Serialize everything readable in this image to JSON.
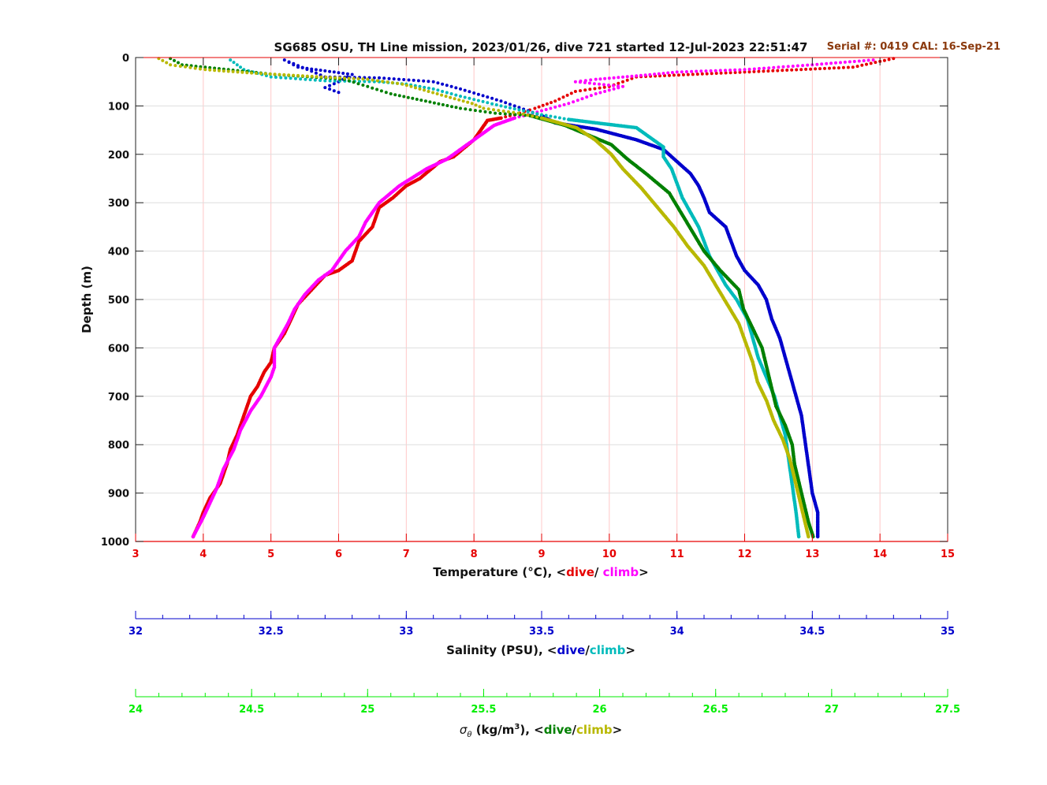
{
  "chart_data": {
    "type": "scatter",
    "title": "SG685 OSU, TH Line mission, 2023/01/26, dive 721 started 12-Jul-2023 22:51:47",
    "annotation": "Serial #: 0419  CAL: 16-Sep-21",
    "ylabel": "Depth (m)",
    "ylim": [
      0,
      1000
    ],
    "y_ticks": [
      "0",
      "100",
      "200",
      "300",
      "400",
      "500",
      "600",
      "700",
      "800",
      "900",
      "1000"
    ],
    "y_reversed": true,
    "grid": true,
    "axes": [
      {
        "name": "temperature",
        "label_prefix": "Temperature (°C), <",
        "label_dive": "dive",
        "label_sep": "/ ",
        "label_climb": "climb",
        "label_suffix": ">",
        "range": [
          3,
          15
        ],
        "ticks": [
          "3",
          "4",
          "5",
          "6",
          "7",
          "8",
          "9",
          "10",
          "11",
          "12",
          "13",
          "14",
          "15"
        ],
        "color": "#e60000"
      },
      {
        "name": "salinity",
        "label_prefix": "Salinity (PSU), <",
        "label_dive": "dive",
        "label_sep": "/",
        "label_climb": "climb",
        "label_suffix": ">",
        "range": [
          32,
          35
        ],
        "ticks": [
          "32",
          "32.5",
          "33",
          "33.5",
          "34",
          "34.5",
          "35"
        ],
        "color": "#0000cc"
      },
      {
        "name": "sigma_theta",
        "label_prefix": "σ",
        "label_sub": "θ",
        "label_mid": " (kg/m",
        "label_sup": "3",
        "label_mid2": "), <",
        "label_dive": "dive",
        "label_sep": "/",
        "label_climb": "climb",
        "label_suffix": ">",
        "range": [
          24,
          27.5
        ],
        "ticks": [
          "24",
          "24.5",
          "25",
          "25.5",
          "26",
          "26.5",
          "27",
          "27.5"
        ],
        "color": "#00ee00"
      }
    ],
    "series": [
      {
        "name": "dive",
        "axis": "temperature",
        "color": "#e60000",
        "points": [
          [
            14.2,
            2
          ],
          [
            13.6,
            20
          ],
          [
            12.0,
            30
          ],
          [
            10.4,
            40
          ],
          [
            10.0,
            60
          ],
          [
            9.5,
            70
          ],
          [
            9.2,
            90
          ],
          [
            8.9,
            105
          ],
          [
            8.6,
            118
          ],
          [
            8.4,
            125
          ],
          [
            8.2,
            130
          ],
          [
            8.0,
            170
          ],
          [
            7.7,
            205
          ],
          [
            7.5,
            215
          ],
          [
            7.2,
            250
          ],
          [
            7.0,
            265
          ],
          [
            6.8,
            290
          ],
          [
            6.6,
            310
          ],
          [
            6.5,
            350
          ],
          [
            6.3,
            380
          ],
          [
            6.2,
            420
          ],
          [
            6.0,
            440
          ],
          [
            5.8,
            450
          ],
          [
            5.6,
            480
          ],
          [
            5.4,
            510
          ],
          [
            5.3,
            540
          ],
          [
            5.2,
            570
          ],
          [
            5.05,
            600
          ],
          [
            5.0,
            630
          ],
          [
            4.9,
            650
          ],
          [
            4.8,
            680
          ],
          [
            4.7,
            700
          ],
          [
            4.6,
            740
          ],
          [
            4.5,
            780
          ],
          [
            4.4,
            810
          ],
          [
            4.35,
            840
          ],
          [
            4.25,
            880
          ],
          [
            4.1,
            910
          ],
          [
            4.0,
            940
          ],
          [
            3.95,
            960
          ],
          [
            3.85,
            990
          ]
        ]
      },
      {
        "name": "climb",
        "axis": "temperature",
        "color": "#ff00ff",
        "points": [
          [
            13.9,
            5
          ],
          [
            13.0,
            15
          ],
          [
            12.0,
            25
          ],
          [
            11.0,
            30
          ],
          [
            10.4,
            38
          ],
          [
            9.8,
            45
          ],
          [
            9.5,
            50
          ],
          [
            10.2,
            60
          ],
          [
            9.8,
            75
          ],
          [
            9.4,
            95
          ],
          [
            9.0,
            110
          ],
          [
            8.8,
            118
          ],
          [
            8.6,
            125
          ],
          [
            8.3,
            140
          ],
          [
            8.0,
            170
          ],
          [
            7.6,
            210
          ],
          [
            7.3,
            230
          ],
          [
            6.9,
            265
          ],
          [
            6.6,
            300
          ],
          [
            6.4,
            340
          ],
          [
            6.3,
            370
          ],
          [
            6.1,
            400
          ],
          [
            6.0,
            420
          ],
          [
            5.9,
            440
          ],
          [
            5.7,
            460
          ],
          [
            5.5,
            490
          ],
          [
            5.35,
            520
          ],
          [
            5.25,
            550
          ],
          [
            5.15,
            575
          ],
          [
            5.05,
            600
          ],
          [
            5.05,
            640
          ],
          [
            5.0,
            660
          ],
          [
            4.85,
            700
          ],
          [
            4.7,
            730
          ],
          [
            4.55,
            770
          ],
          [
            4.45,
            810
          ],
          [
            4.3,
            850
          ],
          [
            4.2,
            890
          ],
          [
            4.1,
            920
          ],
          [
            4.0,
            950
          ],
          [
            3.85,
            990
          ]
        ]
      },
      {
        "name": "dive",
        "axis": "salinity",
        "color": "#0000cc",
        "points": [
          [
            32.75,
            72
          ],
          [
            32.7,
            62
          ],
          [
            32.75,
            50
          ],
          [
            32.8,
            35
          ],
          [
            32.6,
            20
          ],
          [
            32.55,
            5
          ],
          [
            32.7,
            40
          ],
          [
            32.9,
            42
          ],
          [
            33.1,
            50
          ],
          [
            33.2,
            65
          ],
          [
            33.35,
            90
          ],
          [
            33.5,
            120
          ],
          [
            33.55,
            135
          ],
          [
            33.7,
            148
          ],
          [
            33.85,
            170
          ],
          [
            33.95,
            190
          ],
          [
            34.0,
            215
          ],
          [
            34.05,
            240
          ],
          [
            34.08,
            265
          ],
          [
            34.1,
            290
          ],
          [
            34.12,
            320
          ],
          [
            34.18,
            350
          ],
          [
            34.2,
            380
          ],
          [
            34.22,
            410
          ],
          [
            34.25,
            440
          ],
          [
            34.3,
            470
          ],
          [
            34.33,
            500
          ],
          [
            34.35,
            540
          ],
          [
            34.38,
            580
          ],
          [
            34.4,
            620
          ],
          [
            34.42,
            660
          ],
          [
            34.44,
            700
          ],
          [
            34.46,
            740
          ],
          [
            34.47,
            780
          ],
          [
            34.48,
            820
          ],
          [
            34.49,
            860
          ],
          [
            34.5,
            900
          ],
          [
            34.52,
            940
          ],
          [
            34.52,
            990
          ]
        ]
      },
      {
        "name": "climb",
        "axis": "salinity",
        "color": "#00bbbb",
        "points": [
          [
            32.35,
            5
          ],
          [
            32.4,
            25
          ],
          [
            32.5,
            40
          ],
          [
            32.7,
            48
          ],
          [
            32.9,
            50
          ],
          [
            33.0,
            55
          ],
          [
            33.1,
            65
          ],
          [
            33.2,
            80
          ],
          [
            33.35,
            100
          ],
          [
            33.5,
            118
          ],
          [
            33.6,
            128
          ],
          [
            33.7,
            135
          ],
          [
            33.85,
            145
          ],
          [
            33.9,
            165
          ],
          [
            33.95,
            185
          ],
          [
            33.95,
            205
          ],
          [
            33.98,
            230
          ],
          [
            34.0,
            260
          ],
          [
            34.02,
            290
          ],
          [
            34.05,
            320
          ],
          [
            34.08,
            350
          ],
          [
            34.1,
            380
          ],
          [
            34.12,
            410
          ],
          [
            34.15,
            440
          ],
          [
            34.18,
            470
          ],
          [
            34.22,
            500
          ],
          [
            34.26,
            540
          ],
          [
            34.28,
            580
          ],
          [
            34.3,
            620
          ],
          [
            34.33,
            660
          ],
          [
            34.36,
            700
          ],
          [
            34.38,
            740
          ],
          [
            34.4,
            780
          ],
          [
            34.41,
            820
          ],
          [
            34.42,
            860
          ],
          [
            34.43,
            900
          ],
          [
            34.44,
            940
          ],
          [
            34.45,
            990
          ]
        ]
      },
      {
        "name": "dive",
        "axis": "sigma_theta",
        "color": "#008000",
        "points": [
          [
            24.15,
            2
          ],
          [
            24.2,
            15
          ],
          [
            24.4,
            25
          ],
          [
            24.6,
            35
          ],
          [
            24.9,
            45
          ],
          [
            25.0,
            60
          ],
          [
            25.1,
            75
          ],
          [
            25.25,
            90
          ],
          [
            25.4,
            105
          ],
          [
            25.55,
            115
          ],
          [
            25.7,
            120
          ],
          [
            25.85,
            140
          ],
          [
            25.95,
            160
          ],
          [
            26.05,
            180
          ],
          [
            26.12,
            210
          ],
          [
            26.2,
            240
          ],
          [
            26.3,
            280
          ],
          [
            26.35,
            320
          ],
          [
            26.4,
            360
          ],
          [
            26.45,
            400
          ],
          [
            26.52,
            440
          ],
          [
            26.6,
            480
          ],
          [
            26.62,
            520
          ],
          [
            26.66,
            560
          ],
          [
            26.7,
            600
          ],
          [
            26.72,
            640
          ],
          [
            26.74,
            680
          ],
          [
            26.76,
            720
          ],
          [
            26.8,
            760
          ],
          [
            26.83,
            800
          ],
          [
            26.84,
            840
          ],
          [
            26.86,
            880
          ],
          [
            26.88,
            920
          ],
          [
            26.9,
            960
          ],
          [
            26.92,
            990
          ]
        ]
      },
      {
        "name": "climb",
        "axis": "sigma_theta",
        "color": "#b8b800",
        "points": [
          [
            24.1,
            2
          ],
          [
            24.15,
            15
          ],
          [
            24.3,
            25
          ],
          [
            24.5,
            32
          ],
          [
            24.8,
            40
          ],
          [
            25.0,
            45
          ],
          [
            25.15,
            55
          ],
          [
            25.3,
            75
          ],
          [
            25.45,
            95
          ],
          [
            25.5,
            105
          ],
          [
            25.65,
            115
          ],
          [
            25.75,
            125
          ],
          [
            25.9,
            145
          ],
          [
            25.98,
            170
          ],
          [
            26.05,
            200
          ],
          [
            26.1,
            230
          ],
          [
            26.18,
            270
          ],
          [
            26.25,
            310
          ],
          [
            26.32,
            350
          ],
          [
            26.38,
            390
          ],
          [
            26.45,
            430
          ],
          [
            26.5,
            470
          ],
          [
            26.55,
            510
          ],
          [
            26.6,
            550
          ],
          [
            26.63,
            590
          ],
          [
            26.66,
            630
          ],
          [
            26.68,
            670
          ],
          [
            26.72,
            710
          ],
          [
            26.75,
            750
          ],
          [
            26.79,
            790
          ],
          [
            26.82,
            830
          ],
          [
            26.84,
            870
          ],
          [
            26.86,
            910
          ],
          [
            26.88,
            950
          ],
          [
            26.9,
            990
          ]
        ]
      }
    ]
  }
}
